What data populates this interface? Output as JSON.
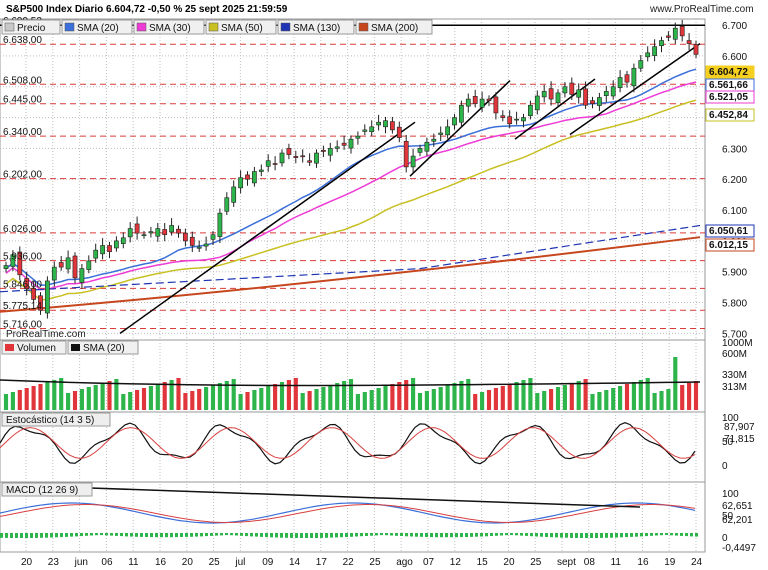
{
  "header": {
    "title": "S&P500 Index Diario 6.604,72 -0,50 % 25 sept 2025 21:59:59",
    "brand": "www.ProRealTime.com",
    "watermark": "ProRealTime.com"
  },
  "price_legend": [
    "Precio",
    "SMA (20)",
    "SMA (30)",
    "SMA (50)",
    "SMA (130)",
    "SMA (200)"
  ],
  "legend_colors": {
    "Precio": "#c8c8c8",
    "SMA (20)": "#3b6fd9",
    "SMA (30)": "#ee3bd6",
    "SMA (50)": "#c8c023",
    "SMA (130)": "#1f35b4",
    "SMA (200)": "#c6471e"
  },
  "volume_legend": [
    "Volumen",
    "SMA (20)"
  ],
  "stoch_legend": "Estocástico (14 3 5)",
  "macd_legend": "MACD (12 26 9)",
  "colors": {
    "up": "#2db44a",
    "down": "#e0363b",
    "grid": "#bfbfbf",
    "hline": "#d93a3a"
  },
  "chart_data": [
    {
      "type": "candlestick",
      "title": "S&P500 Index Diario",
      "x_ticks": [
        "20",
        "23",
        "jun",
        "06",
        "11",
        "16",
        "20",
        "25",
        "jul",
        "09",
        "14",
        "17",
        "22",
        "25",
        "ago",
        "07",
        "12",
        "15",
        "20",
        "25",
        "sept",
        "08",
        "11",
        "16",
        "19",
        "24"
      ],
      "y_ticks": [
        "6.700",
        "6.600",
        "6.500",
        "6.400",
        "6.300",
        "6.200",
        "6.100",
        "6.000",
        "5.900",
        "5.800",
        "5.700"
      ],
      "ylim": [
        5685,
        6710
      ],
      "level_labels": [
        "6.699,52",
        "6.638,00",
        "6.508,00",
        "6.445,00",
        "6.340,00",
        "6.202,00",
        "6.026,00",
        "5.936,00",
        "5.846,00",
        "5.775,14",
        "5.716,00"
      ],
      "last_values": [
        {
          "label": "6.604,72",
          "color": "#f5d020"
        },
        {
          "label": "6.561,66",
          "color": "#3b6fd9"
        },
        {
          "label": "6.521,05",
          "color": "#ee3bd6"
        },
        {
          "label": "6.452,84",
          "color": "#c8c023"
        },
        {
          "label": "6.050,61",
          "color": "#1f35b4"
        },
        {
          "label": "6.012,15",
          "color": "#c6471e"
        }
      ],
      "closes": [
        5920,
        5955,
        5890,
        5845,
        5810,
        5775,
        5870,
        5915,
        5915,
        5945,
        5880,
        5910,
        5935,
        5970,
        5985,
        5965,
        6000,
        6010,
        6040,
        6025,
        6020,
        6030,
        6040,
        6020,
        6050,
        6025,
        6000,
        5985,
        5980,
        5990,
        6020,
        6090,
        6140,
        6175,
        6205,
        6200,
        6225,
        6230,
        6260,
        6250,
        6285,
        6280,
        6270,
        6275,
        6255,
        6285,
        6290,
        6300,
        6305,
        6310,
        6330,
        6340,
        6360,
        6370,
        6385,
        6390,
        6360,
        6335,
        6240,
        6275,
        6300,
        6320,
        6330,
        6350,
        6370,
        6400,
        6440,
        6460,
        6445,
        6460,
        6455,
        6415,
        6400,
        6380,
        6395,
        6400,
        6440,
        6470,
        6485,
        6460,
        6480,
        6500,
        6475,
        6490,
        6440,
        6445,
        6465,
        6485,
        6500,
        6530,
        6515,
        6560,
        6585,
        6610,
        6630,
        6650,
        6660,
        6690,
        6665,
        6640,
        6605
      ]
    },
    {
      "type": "bar",
      "title": "Volumen",
      "y_ticks": [
        "1000M",
        "600M"
      ],
      "last_values": [
        "330M",
        "313M"
      ]
    },
    {
      "type": "line",
      "title": "Estocástico (14 3 5)",
      "y_ticks": [
        "100",
        "50",
        "0"
      ],
      "last_values": [
        "87,907",
        "71,815"
      ]
    },
    {
      "type": "line",
      "title": "MACD (12 26 9)",
      "y_ticks": [
        "100",
        "50",
        "0"
      ],
      "last_values": [
        "62,651",
        "62,201",
        "-0,4497"
      ]
    }
  ]
}
